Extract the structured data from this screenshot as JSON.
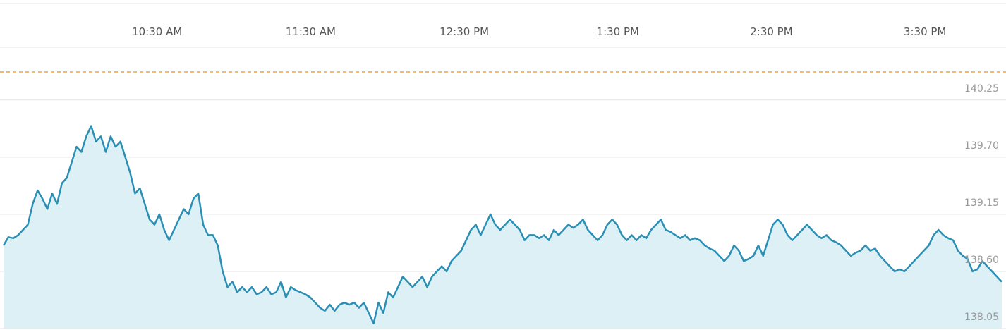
{
  "chart_data": {
    "type": "area",
    "title": "",
    "xlabel": "",
    "ylabel": "",
    "x_ticks": [
      "10:30 AM",
      "11:30 AM",
      "12:30 PM",
      "1:30 PM",
      "2:30 PM",
      "3:30 PM"
    ],
    "y_ticks": [
      "140.25",
      "139.70",
      "139.15",
      "138.60",
      "138.05"
    ],
    "reference_line_value": 140.52,
    "ylim": [
      138.05,
      140.52
    ],
    "time_start_hour": 9.5,
    "time_end_hour": 16.0,
    "grid": true,
    "colors": {
      "line": "#2a8fb5",
      "fill": "#dcf0f5",
      "reference_line": "#f0a537",
      "grid": "#e3e3e3"
    },
    "series": [
      {
        "values": [
          138.85,
          138.93,
          138.92,
          138.95,
          139.0,
          139.05,
          139.25,
          139.38,
          139.3,
          139.2,
          139.35,
          139.25,
          139.45,
          139.5,
          139.65,
          139.8,
          139.75,
          139.9,
          140.0,
          139.85,
          139.9,
          139.75,
          139.9,
          139.8,
          139.85,
          139.7,
          139.55,
          139.35,
          139.4,
          139.25,
          139.1,
          139.05,
          139.15,
          139.0,
          138.9,
          139.0,
          139.1,
          139.2,
          139.15,
          139.3,
          139.35,
          139.05,
          138.95,
          138.95,
          138.85,
          138.6,
          138.45,
          138.5,
          138.4,
          138.45,
          138.4,
          138.45,
          138.38,
          138.4,
          138.45,
          138.38,
          138.4,
          138.5,
          138.35,
          138.45,
          138.42,
          138.4,
          138.38,
          138.35,
          138.3,
          138.25,
          138.22,
          138.28,
          138.22,
          138.28,
          138.3,
          138.28,
          138.3,
          138.25,
          138.3,
          138.2,
          138.1,
          138.3,
          138.2,
          138.4,
          138.35,
          138.45,
          138.55,
          138.5,
          138.45,
          138.5,
          138.55,
          138.45,
          138.55,
          138.6,
          138.65,
          138.6,
          138.7,
          138.75,
          138.8,
          138.9,
          139.0,
          139.05,
          138.95,
          139.05,
          139.15,
          139.05,
          139.0,
          139.05,
          139.1,
          139.05,
          139.0,
          138.9,
          138.95,
          138.95,
          138.92,
          138.95,
          138.9,
          139.0,
          138.95,
          139.0,
          139.05,
          139.02,
          139.05,
          139.1,
          139.0,
          138.95,
          138.9,
          138.95,
          139.05,
          139.1,
          139.05,
          138.95,
          138.9,
          138.95,
          138.9,
          138.95,
          138.92,
          139.0,
          139.05,
          139.1,
          139.0,
          138.98,
          138.95,
          138.92,
          138.95,
          138.9,
          138.92,
          138.9,
          138.85,
          138.82,
          138.8,
          138.75,
          138.7,
          138.75,
          138.85,
          138.8,
          138.7,
          138.72,
          138.75,
          138.85,
          138.75,
          138.9,
          139.05,
          139.1,
          139.05,
          138.95,
          138.9,
          138.95,
          139.0,
          139.05,
          139.0,
          138.95,
          138.92,
          138.95,
          138.9,
          138.88,
          138.85,
          138.8,
          138.75,
          138.78,
          138.8,
          138.85,
          138.8,
          138.82,
          138.75,
          138.7,
          138.65,
          138.6,
          138.62,
          138.6,
          138.65,
          138.7,
          138.75,
          138.8,
          138.85,
          138.95,
          139.0,
          138.95,
          138.92,
          138.9,
          138.8,
          138.75,
          138.72,
          138.6,
          138.62,
          138.7,
          138.65,
          138.6,
          138.55,
          138.5
        ]
      }
    ]
  }
}
